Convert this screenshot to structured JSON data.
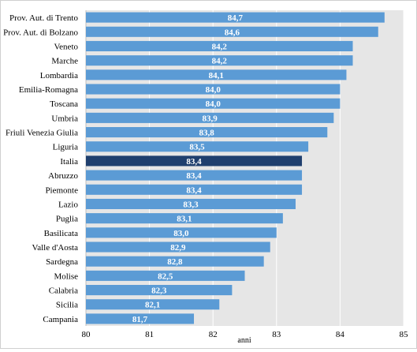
{
  "chart_data": {
    "type": "bar",
    "orientation": "horizontal",
    "categories": [
      "Prov. Aut. di Trento",
      "Prov. Aut. di Bolzano",
      "Veneto",
      "Marche",
      "Lombardia",
      "Emilia-Romagna",
      "Toscana",
      "Umbria",
      "Friuli Venezia Giulia",
      "Liguria",
      "Italia",
      "Abruzzo",
      "Piemonte",
      "Lazio",
      "Puglia",
      "Basilicata",
      "Valle d'Aosta",
      "Sardegna",
      "Molise",
      "Calabria",
      "Sicilia",
      "Campania"
    ],
    "values": [
      84.7,
      84.6,
      84.2,
      84.2,
      84.1,
      84.0,
      84.0,
      83.9,
      83.8,
      83.5,
      83.4,
      83.4,
      83.4,
      83.3,
      83.1,
      83.0,
      82.9,
      82.8,
      82.5,
      82.3,
      82.1,
      81.7
    ],
    "data_labels": [
      "84,7",
      "84,6",
      "84,2",
      "84,2",
      "84,1",
      "84,0",
      "84,0",
      "83,9",
      "83,8",
      "83,5",
      "83,4",
      "83,4",
      "83,4",
      "83,3",
      "83,1",
      "83,0",
      "82,9",
      "82,8",
      "82,5",
      "82,3",
      "82,1",
      "81,7"
    ],
    "highlight_category": "Italia",
    "xlabel": "anni",
    "xlim": [
      80,
      85
    ],
    "xticks": [
      "80",
      "81",
      "82",
      "83",
      "84",
      "85"
    ],
    "grid": true,
    "colors": {
      "bar": "#5b9bd5",
      "highlight": "#1f3f6e",
      "plot_background": "#e6e6e6",
      "gridline": "#ffffff"
    }
  }
}
